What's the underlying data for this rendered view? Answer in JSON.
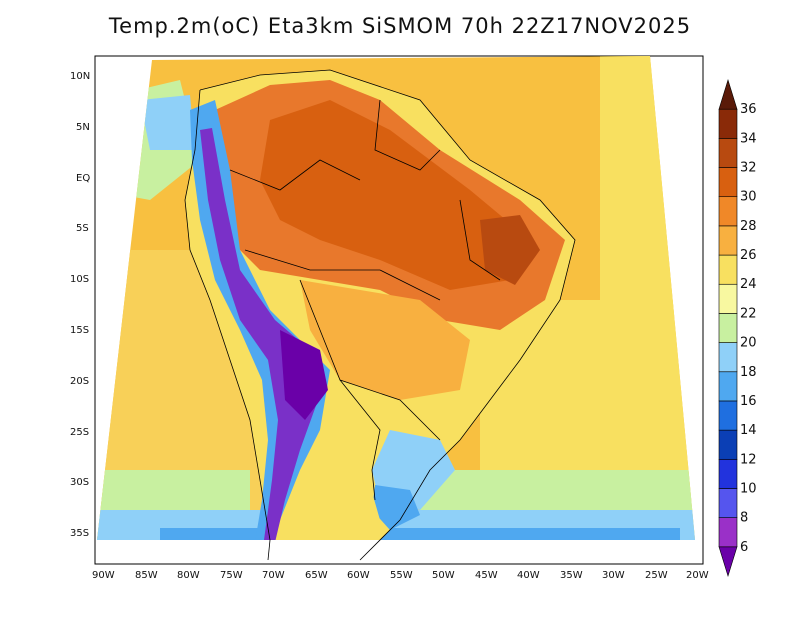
{
  "title": "Temp.2m(oC) Eta3km SiSMOM 70h 22Z17NOV2025",
  "axes": {
    "lat_labels": [
      "10N",
      "5N",
      "EQ",
      "5S",
      "10S",
      "15S",
      "20S",
      "25S",
      "30S",
      "35S"
    ],
    "lon_labels": [
      "90W",
      "85W",
      "80W",
      "75W",
      "70W",
      "65W",
      "60W",
      "55W",
      "50W",
      "45W",
      "40W",
      "35W",
      "30W",
      "25W",
      "20W"
    ]
  },
  "colorbar": {
    "unit": "oC",
    "labels": [
      "6",
      "8",
      "10",
      "12",
      "14",
      "16",
      "18",
      "20",
      "22",
      "24",
      "26",
      "28",
      "30",
      "32",
      "34",
      "36"
    ],
    "colors": [
      "#6a00a8",
      "#9a30c8",
      "#5555ee",
      "#2233dd",
      "#0b3fb5",
      "#1f6fe0",
      "#4fa8f0",
      "#8fd0f8",
      "#c8f0a0",
      "#f8f8a0",
      "#f8e060",
      "#f8b040",
      "#f08828",
      "#d86010",
      "#b84a10",
      "#8a2a08",
      "#5a1a08"
    ]
  },
  "regions": {
    "ocean_pacific": "#f8b040",
    "ocean_atlantic": "#f8c040",
    "amazon": "#e8782c",
    "andes": "#7a30c8",
    "south_cool": "#8fd0f8",
    "cold_south": "#4fa8f0"
  }
}
